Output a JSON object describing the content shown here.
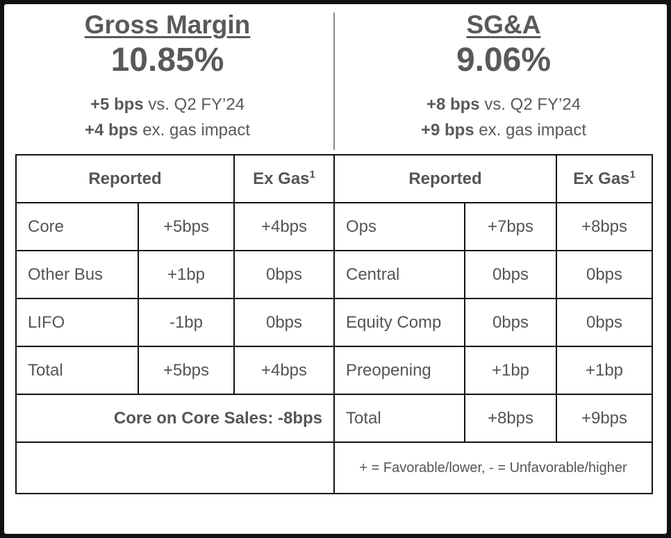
{
  "gross_margin": {
    "title": "Gross Margin",
    "value": "10.85%",
    "line1_bold": "+5 bps",
    "line1_rest": " vs. Q2 FY’24",
    "line2_bold": "+4 bps",
    "line2_rest": " ex. gas impact"
  },
  "sga": {
    "title": "SG&A",
    "value": "9.06%",
    "line1_bold": "+8 bps",
    "line1_rest": " vs. Q2 FY’24",
    "line2_bold": "+9 bps",
    "line2_rest": " ex. gas impact"
  },
  "table": {
    "headers": {
      "left_reported": "Reported",
      "left_exgas": "Ex Gas",
      "right_reported": "Reported",
      "right_exgas": "Ex Gas",
      "footnote_mark": "1"
    },
    "rows": [
      {
        "gm_label": "Core",
        "gm_reported": "+5bps",
        "gm_exgas": "+4bps",
        "sga_label": "Ops",
        "sga_reported": "+7bps",
        "sga_exgas": "+8bps"
      },
      {
        "gm_label": "Other Bus",
        "gm_reported": "+1bp",
        "gm_exgas": "0bps",
        "sga_label": "Central",
        "sga_reported": "0bps",
        "sga_exgas": "0bps"
      },
      {
        "gm_label": "LIFO",
        "gm_reported": "-1bp",
        "gm_exgas": "0bps",
        "sga_label": "Equity Comp",
        "sga_reported": "0bps",
        "sga_exgas": "0bps"
      },
      {
        "gm_label": "Total",
        "gm_reported": "+5bps",
        "gm_exgas": "+4bps",
        "sga_label": "Preopening",
        "sga_reported": "+1bp",
        "sga_exgas": "+1bp"
      }
    ],
    "core_on_core": "Core on Core Sales: -8bps",
    "sga_total": {
      "label": "Total",
      "reported": "+8bps",
      "exgas": "+9bps"
    },
    "legend": "+ = Favorable/lower, - = Unfavorable/higher"
  }
}
